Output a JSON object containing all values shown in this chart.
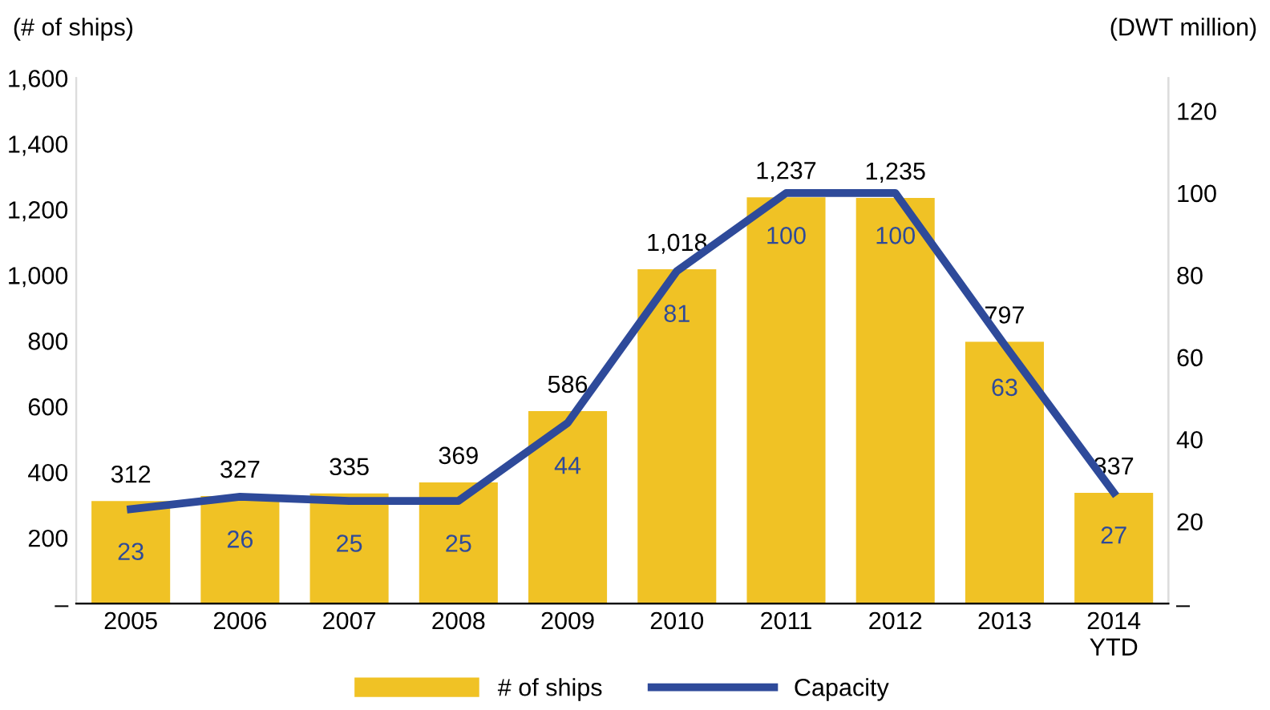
{
  "chart_data": {
    "type": "bar",
    "categories": [
      "2005",
      "2006",
      "2007",
      "2008",
      "2009",
      "2010",
      "2011",
      "2012",
      "2013",
      "2014\nYTD"
    ],
    "ylabel": "(# of ships)",
    "y2label": "(DWT million)",
    "series": [
      {
        "name": "# of ships",
        "color": "#f0c225",
        "values": [
          312,
          327,
          335,
          369,
          586,
          1018,
          1237,
          1235,
          797,
          337
        ],
        "value_labels": [
          "312",
          "327",
          "335",
          "369",
          "586",
          "1,018",
          "1,237",
          "1,235",
          "797",
          "337"
        ]
      },
      {
        "name": "Capacity",
        "type": "line",
        "axis": "y2",
        "color": "#2e4a9a",
        "values": [
          23,
          26,
          25,
          25,
          44,
          81,
          100,
          100,
          63,
          27
        ]
      }
    ],
    "ylim": [
      0,
      1600
    ],
    "yticks": [
      {
        "value": 0,
        "label": "–"
      },
      200,
      {
        "value": 400,
        "label": "400"
      },
      600,
      800,
      {
        "value": 1000,
        "label": "1,000"
      },
      {
        "value": 1200,
        "label": "1,200"
      },
      {
        "value": 1400,
        "label": "1,400"
      },
      {
        "value": 1600,
        "label": "1,600"
      }
    ],
    "y2lim": [
      0,
      128
    ],
    "y2ticks": [
      {
        "value": 0,
        "label": "–"
      },
      20,
      40,
      60,
      80,
      100,
      120
    ],
    "data_labels": true,
    "grid": false,
    "legend": "bottom",
    "line_style": "solid",
    "marker": "none"
  }
}
